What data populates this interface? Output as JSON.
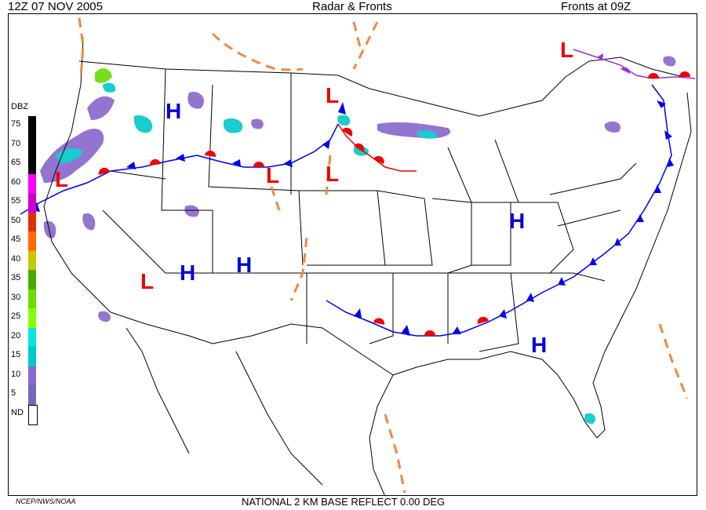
{
  "header": {
    "left": "12Z  07 NOV  2005",
    "center": "Radar & Fronts",
    "right": "Fronts at 09Z"
  },
  "footer": {
    "left": "NCEP/NWS/NOAA",
    "center": "NATIONAL 2 KM BASE REFLECT 0.00 DEG"
  },
  "legend": {
    "title": "DBZ",
    "items": [
      {
        "label": "75",
        "color": "#000000"
      },
      {
        "label": "70",
        "color": "#000000"
      },
      {
        "label": "65",
        "color": "#000000"
      },
      {
        "label": "60",
        "color": "#ff00ff"
      },
      {
        "label": "55",
        "color": "#cc00cc"
      },
      {
        "label": "50",
        "color": "#e03000"
      },
      {
        "label": "45",
        "color": "#ff6a00"
      },
      {
        "label": "40",
        "color": "#c8c800"
      },
      {
        "label": "35",
        "color": "#4caa00"
      },
      {
        "label": "30",
        "color": "#66dd00"
      },
      {
        "label": "25",
        "color": "#88ff00"
      },
      {
        "label": "20",
        "color": "#00e6e6"
      },
      {
        "label": "15",
        "color": "#00c8c8"
      },
      {
        "label": "10",
        "color": "#8866cc"
      },
      {
        "label": "5",
        "color": "#7766bb"
      },
      {
        "label": "ND",
        "color": "#ffffff"
      }
    ]
  },
  "pressure_centers": [
    {
      "type": "H",
      "color": "#0000dd"
    },
    {
      "type": "H",
      "color": "#0000dd"
    },
    {
      "type": "H",
      "color": "#0000dd"
    },
    {
      "type": "H",
      "color": "#0000dd"
    },
    {
      "type": "H",
      "color": "#0000dd"
    },
    {
      "type": "L",
      "color": "#ee0000"
    },
    {
      "type": "L",
      "color": "#ee0000"
    },
    {
      "type": "L",
      "color": "#ee0000"
    },
    {
      "type": "L",
      "color": "#ee0000"
    },
    {
      "type": "L",
      "color": "#ee0000"
    },
    {
      "type": "L",
      "color": "#ee0000"
    }
  ],
  "front_colors": {
    "cold": "#0000ee",
    "warm": "#ee0000",
    "trough": "#ee8844",
    "occluded": "#9933cc"
  }
}
